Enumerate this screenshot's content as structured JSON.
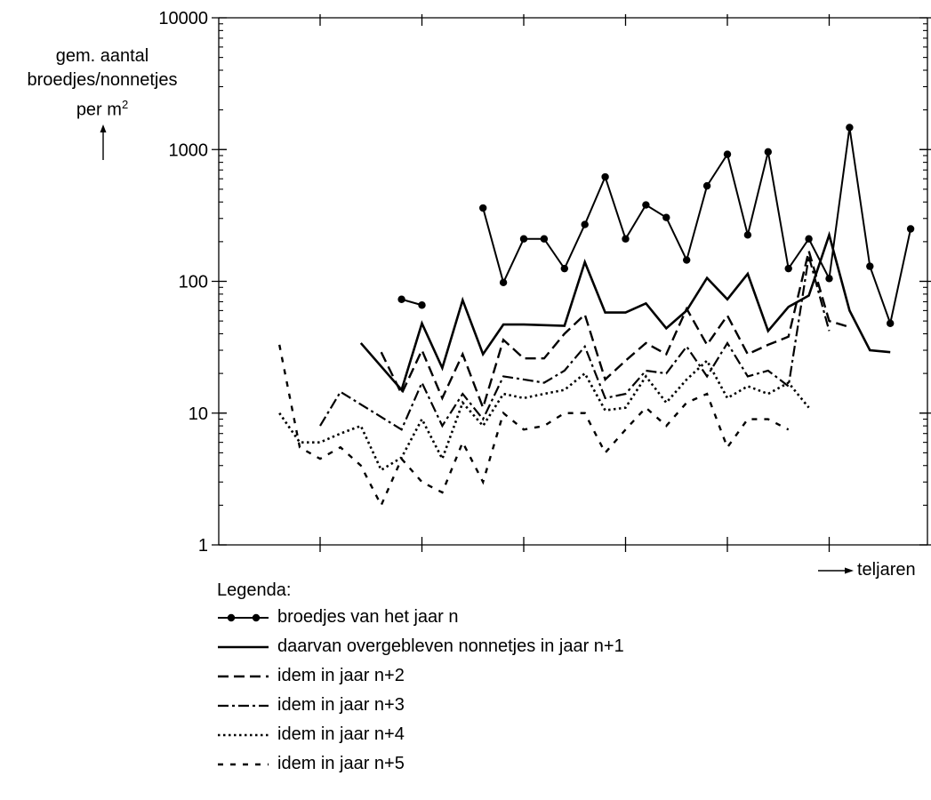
{
  "chart_data": {
    "type": "line",
    "yscale": "log",
    "ylim": [
      1,
      10000
    ],
    "yticks": [
      "1",
      "10",
      "100",
      "1000",
      "10000"
    ],
    "ylabel_lines": [
      "gem. aantal",
      "broedjes/nonnetjes",
      "per m"
    ],
    "ylabel_superscript": "2",
    "xlabel": "teljaren",
    "x_tick_labels_shown": false,
    "grid": false,
    "legend": {
      "title": "Legenda:",
      "position": "below"
    },
    "series": [
      {
        "name": "broedjes van het jaar n",
        "style": "line-with-dots",
        "x": [
          9,
          10,
          13,
          14,
          15,
          16,
          17,
          18,
          19,
          20,
          21,
          22,
          23,
          24,
          25,
          26,
          27,
          28,
          29,
          30,
          31,
          32,
          33,
          34
        ],
        "values": [
          73,
          66,
          360,
          98,
          210,
          210,
          125,
          270,
          620,
          210,
          380,
          305,
          145,
          530,
          920,
          225,
          960,
          125,
          210,
          105,
          1470,
          130,
          48,
          250
        ],
        "breaks_after_x": [
          10
        ]
      },
      {
        "name": "daarvan overgebleven nonnetjes in jaar n+1",
        "style": "solid",
        "x": [
          7,
          9,
          10,
          11,
          12,
          13,
          14,
          15,
          17,
          18,
          19,
          20,
          21,
          22,
          23,
          24,
          25,
          26,
          27,
          28,
          29,
          30,
          31,
          32,
          33
        ],
        "values": [
          34,
          15,
          48,
          22,
          72,
          28,
          47,
          47,
          46,
          140,
          58,
          58,
          68,
          44,
          60,
          106,
          73,
          114,
          42,
          64,
          78,
          225,
          60,
          30,
          29
        ],
        "breaks_after_x": []
      },
      {
        "name": "idem in jaar n+2",
        "style": "dashed",
        "x": [
          8,
          9,
          10,
          11,
          12,
          13,
          14,
          15,
          16,
          17,
          18,
          19,
          20,
          21,
          22,
          23,
          24,
          25,
          26,
          27,
          28,
          29,
          30,
          31
        ],
        "values": [
          29,
          14,
          30,
          13,
          28,
          11,
          36,
          26,
          26,
          40,
          56,
          18,
          25,
          34,
          28,
          62,
          33,
          55,
          28,
          33,
          38,
          170,
          50,
          45
        ],
        "breaks_after_x": []
      },
      {
        "name": "idem in jaar n+3",
        "style": "dash-dot",
        "x": [
          5,
          6,
          9,
          10,
          11,
          12,
          13,
          14,
          15,
          16,
          17,
          18,
          19,
          20,
          21,
          22,
          23,
          24,
          25,
          26,
          27,
          28,
          29,
          30
        ],
        "values": [
          8,
          14.5,
          7.5,
          17,
          8,
          14,
          9,
          19,
          18,
          17,
          21,
          32,
          13,
          14,
          21,
          20,
          32,
          19,
          34,
          19,
          21,
          16,
          155,
          42
        ],
        "breaks_after_x": []
      },
      {
        "name": "idem in jaar n+4",
        "style": "dotted",
        "x": [
          3,
          4,
          5,
          6,
          7,
          8,
          9,
          10,
          11,
          12,
          13,
          14,
          15,
          16,
          17,
          18,
          19,
          20,
          21,
          22,
          23,
          24,
          25,
          26,
          27,
          28,
          29
        ],
        "values": [
          10,
          6,
          6,
          7,
          8,
          3.7,
          4.6,
          9,
          4.5,
          12,
          8,
          14,
          13,
          14,
          15,
          20,
          10.5,
          11,
          19,
          12,
          18,
          25,
          13,
          16,
          14,
          17,
          11
        ],
        "breaks_after_x": []
      },
      {
        "name": "idem in jaar n+5",
        "style": "short-dashed",
        "x": [
          3,
          4,
          5,
          6,
          7,
          8,
          9,
          10,
          11,
          12,
          13,
          14,
          15,
          16,
          17,
          18,
          19,
          20,
          21,
          22,
          23,
          24,
          25,
          26,
          27,
          28
        ],
        "values": [
          33,
          5.5,
          4.5,
          5.5,
          4,
          2,
          4.5,
          3,
          2.5,
          6,
          3,
          10,
          7.5,
          8,
          10,
          10,
          5,
          7.5,
          11,
          8,
          12,
          14,
          5.5,
          9,
          9,
          7.5
        ],
        "breaks_after_x": []
      }
    ]
  }
}
